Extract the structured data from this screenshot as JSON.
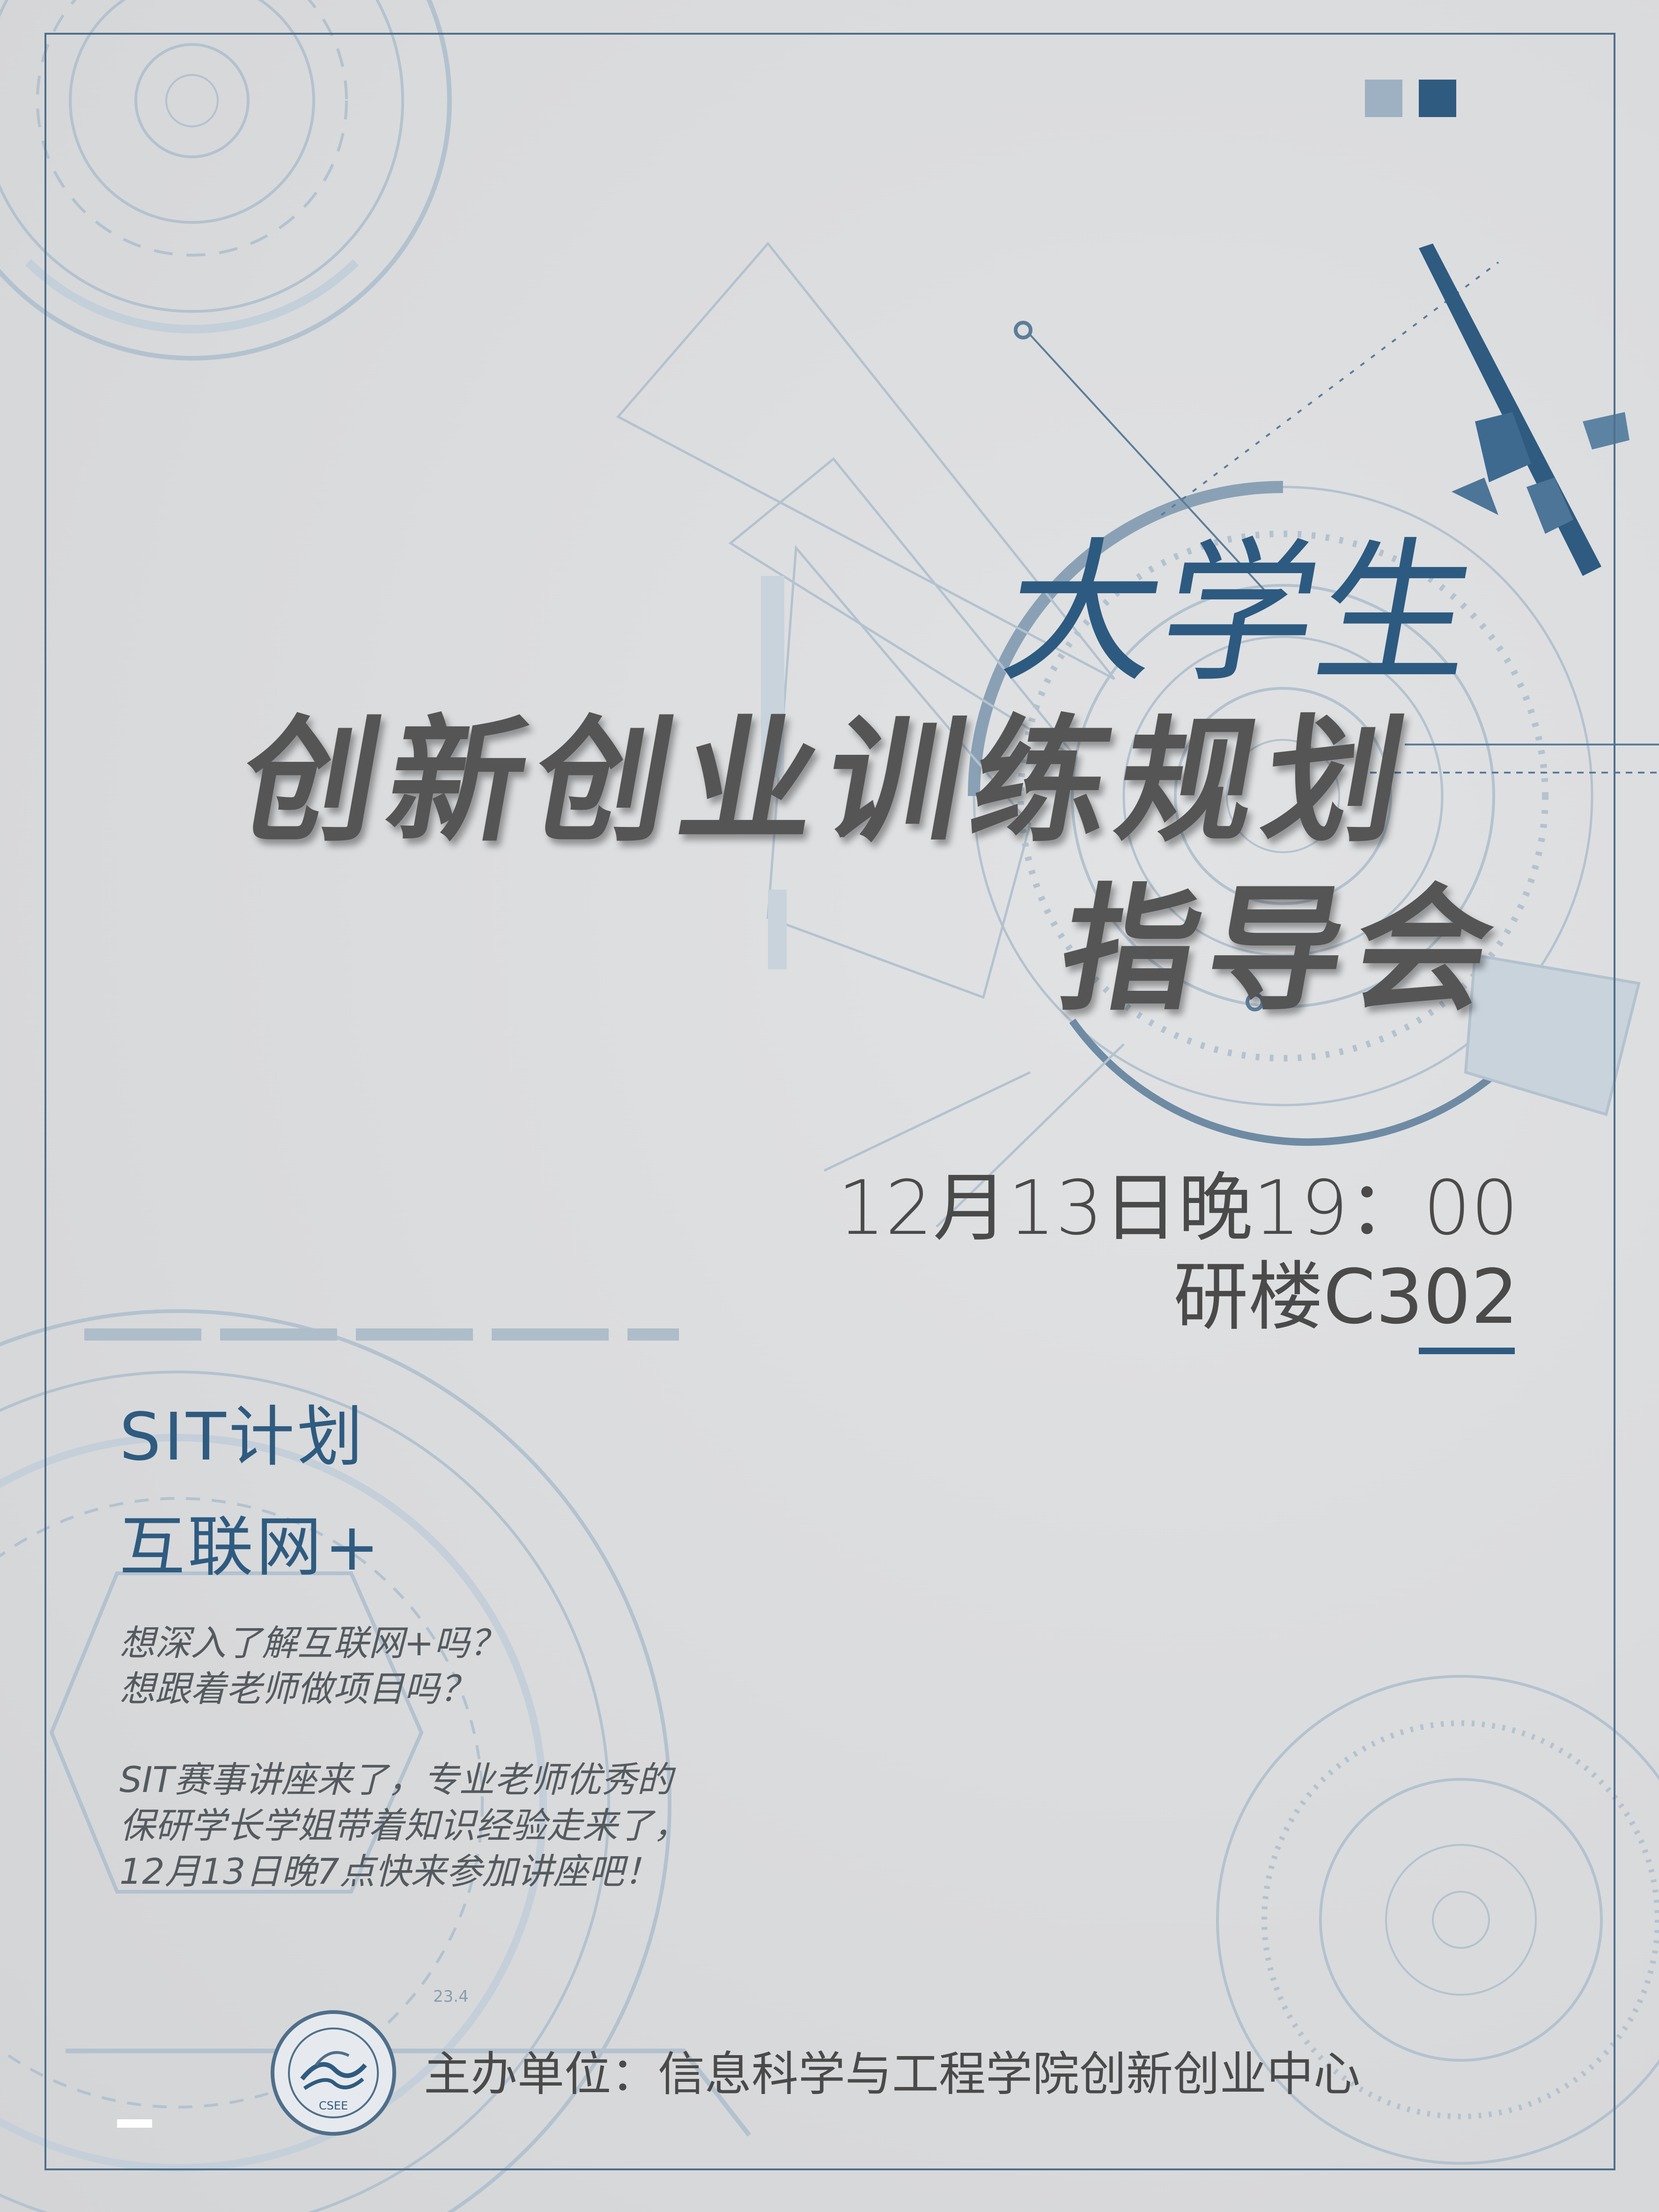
{
  "colors": {
    "background": "#dcdddf",
    "accent_blue": "#2f5b80",
    "light_blue": "#9db1c3",
    "title_gray": "#555555",
    "frame": "#4f6f8b"
  },
  "title": {
    "line1": "大学生",
    "line2": "创新创业训练规划",
    "line3": "指导会"
  },
  "event": {
    "datetime": "12月13日晚19：00",
    "location": "研楼C302"
  },
  "tags": {
    "tag1": "SIT计划",
    "tag2": "互联网+"
  },
  "description": {
    "line1": "想深入了解互联网+吗？",
    "line2": "想跟着老师做项目吗？",
    "line3": "SIT赛事讲座来了，专业老师优秀的",
    "line4": "保研学长学姐带着知识经验走来了，",
    "line5": "12月13日晚7点快来参加讲座吧！"
  },
  "logo": {
    "icon": "college-seal-logo",
    "abbr": "CSEE"
  },
  "footer": {
    "host": "主办单位：信息科学与工程学院创新创业中心"
  },
  "decoration": {
    "hud_label": "23.4"
  }
}
